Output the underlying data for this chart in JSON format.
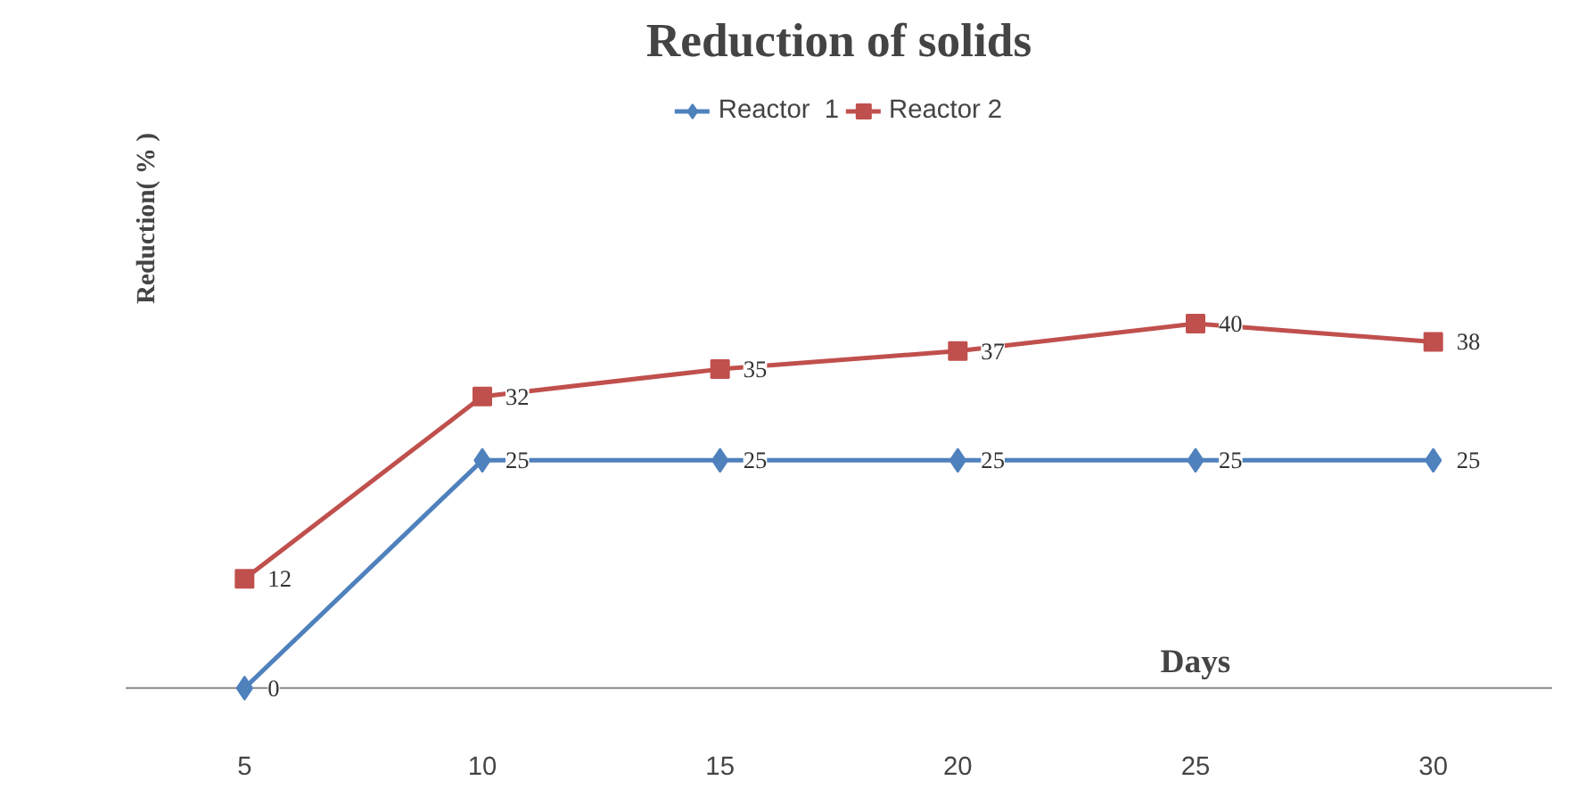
{
  "chart_data": {
    "type": "line",
    "title": "Reduction of solids",
    "xlabel": "Days",
    "ylabel": "Reduction( % )",
    "categories": [
      "5",
      "10",
      "15",
      "20",
      "25",
      "30"
    ],
    "series": [
      {
        "name": "Reactor  1",
        "color": "#4f81bd",
        "marker": "diamond",
        "values": [
          0,
          25,
          25,
          25,
          25,
          25
        ]
      },
      {
        "name": "Reactor 2",
        "color": "#c0504d",
        "marker": "square",
        "values": [
          12,
          32,
          35,
          37,
          40,
          38
        ]
      }
    ],
    "data_labels": true,
    "legend": "top",
    "grid": false
  }
}
